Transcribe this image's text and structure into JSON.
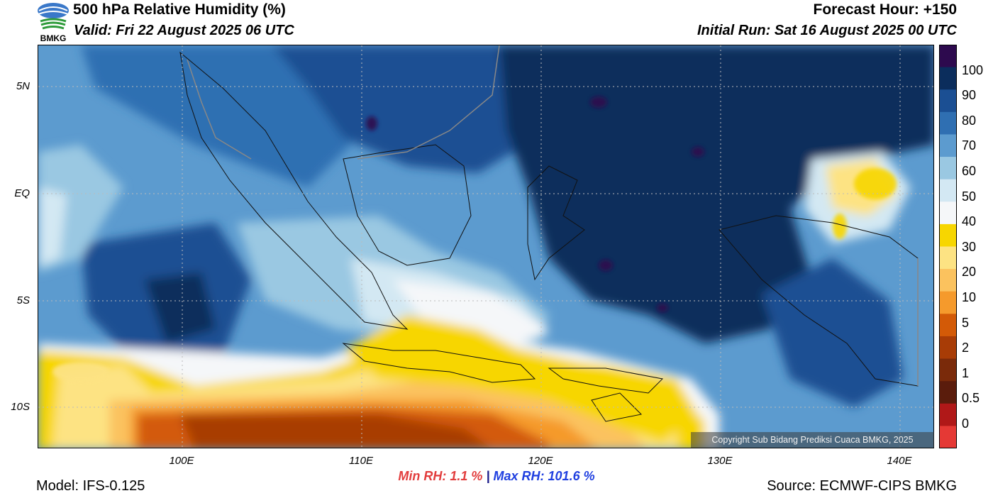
{
  "header": {
    "title": "500 hPa Relative Humidity (%)",
    "valid": "Valid: Fri 22 August 2025 06 UTC",
    "forecast_hour": "Forecast Hour: +150",
    "initial_run": "Initial Run: Sat 16 August 2025 00 UTC",
    "logo_text": "BMKG"
  },
  "axes": {
    "lat_labels": [
      "5N",
      "EQ",
      "5S",
      "10S"
    ],
    "lon_labels": [
      "100E",
      "110E",
      "120E",
      "130E",
      "140E"
    ]
  },
  "colorbar": {
    "labels": [
      "100",
      "90",
      "80",
      "70",
      "60",
      "50",
      "40",
      "30",
      "20",
      "10",
      "5",
      "2",
      "1",
      "0.5",
      "0"
    ],
    "colors": [
      "#2d0a4e",
      "#0b2d5c",
      "#1b4f93",
      "#2f6fb2",
      "#5c9bcf",
      "#9ac8e2",
      "#d3e8f3",
      "#f5f7f9",
      "#f7d600",
      "#fde383",
      "#fbc25e",
      "#f59a2c",
      "#d35a07",
      "#a83c06",
      "#7a2a0a",
      "#5a1c0c",
      "#b01818",
      "#e53935"
    ]
  },
  "stats": {
    "min_label": "Min RH:",
    "min_value": "1.1 %",
    "separator": "|",
    "max_label": "Max RH:",
    "max_value": "101.6 %"
  },
  "footer": {
    "model": "Model: IFS-0.125",
    "source": "Source: ECMWF-CIPS BMKG",
    "copyright": "Copyright Sub Bidang Prediksi Cuaca BMKG, 2025"
  }
}
